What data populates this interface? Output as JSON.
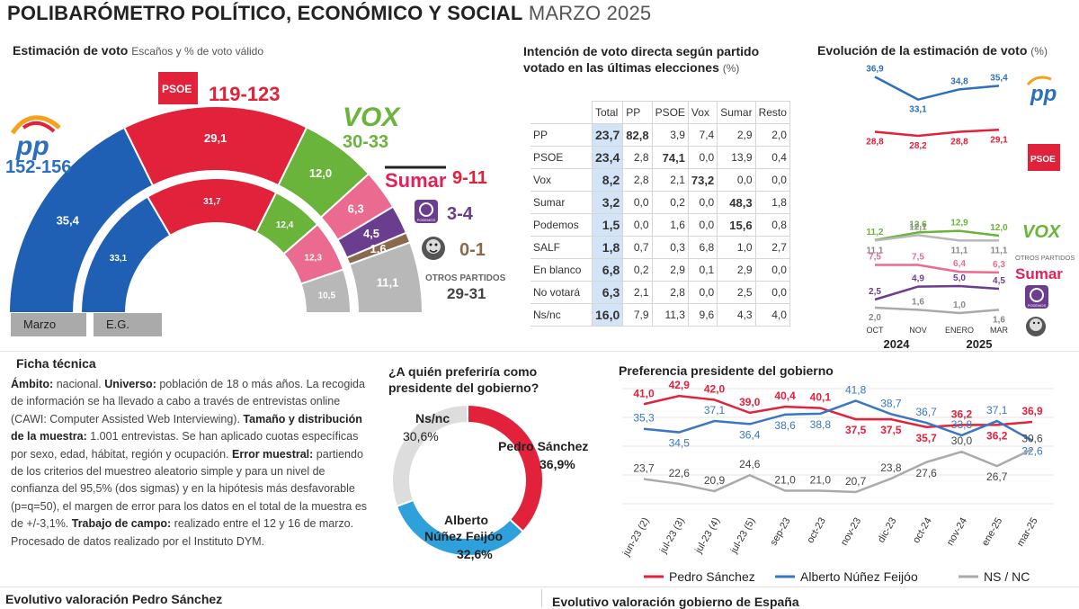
{
  "header": {
    "title_bold": "POLIBARÓMETRO POLÍTICO, ECONÓMICO Y SOCIAL",
    "title_light": "MARZO 2025"
  },
  "estimacion": {
    "title": "Estimación de voto",
    "subtitle": "Escaños y % de voto válido",
    "tabs": [
      "Marzo",
      "E.G."
    ],
    "parties": [
      {
        "name": "PP",
        "seats": "152-156"
      },
      {
        "name": "PSOE",
        "seats": "119-123"
      },
      {
        "name": "VOX",
        "seats": "30-33"
      },
      {
        "name": "Sumar",
        "seats": "9-11"
      },
      {
        "name": "Podemos",
        "seats": "3-4",
        "logo_text": "PODEMOS"
      },
      {
        "name": "SALF",
        "seats": "0-1"
      },
      {
        "name": "Otros partidos",
        "label": "OTROS PARTIDOS",
        "seats": "29-31"
      }
    ]
  },
  "intencion": {
    "title_line1": "Intención de voto directa según partido",
    "title_line2": "votado en las últimas elecciones",
    "unit": "(%)",
    "columns": [
      "Total",
      "PP",
      "PSOE",
      "Vox",
      "Sumar",
      "Resto"
    ],
    "rows": [
      {
        "label": "PP",
        "cells": [
          "23,7",
          "82,8",
          "3,9",
          "7,4",
          "2,9",
          "2,0"
        ]
      },
      {
        "label": "PSOE",
        "cells": [
          "23,4",
          "2,8",
          "74,1",
          "0,0",
          "13,9",
          "0,4"
        ]
      },
      {
        "label": "Vox",
        "cells": [
          "8,2",
          "2,8",
          "2,1",
          "73,2",
          "0,0",
          "0,0"
        ]
      },
      {
        "label": "Sumar",
        "cells": [
          "3,2",
          "0,0",
          "0,2",
          "0,0",
          "48,3",
          "1,8"
        ]
      },
      {
        "label": "Podemos",
        "cells": [
          "1,5",
          "0,0",
          "1,6",
          "0,0",
          "15,6",
          "0,8"
        ]
      },
      {
        "label": "SALF",
        "cells": [
          "1,8",
          "0,7",
          "0,3",
          "6,8",
          "1,0",
          "2,7"
        ]
      },
      {
        "label": "En blanco",
        "cells": [
          "6,8",
          "0,2",
          "2,9",
          "0,1",
          "2,9",
          "0,0"
        ]
      },
      {
        "label": "No votará",
        "cells": [
          "6,3",
          "2,1",
          "2,8",
          "0,0",
          "2,5",
          "0,0"
        ]
      },
      {
        "label": "Ns/nc",
        "cells": [
          "16,0",
          "7,9",
          "11,3",
          "9,6",
          "4,3",
          "4,0"
        ]
      }
    ]
  },
  "evolucion": {
    "title": "Evolución de la estimación de voto",
    "unit": "(%)",
    "otros_label": "OTROS PARTIDOS",
    "x_labels": [
      "OCT",
      "NOV",
      "ENERO",
      "MAR"
    ],
    "year_labels": [
      "2024",
      "2025"
    ]
  },
  "ficha": {
    "title": "Ficha técnica",
    "segments": [
      {
        "b": "Ámbito:",
        "t": " nacional. "
      },
      {
        "b": "Universo:",
        "t": " población de 18 o más años. La recogida de información se ha llevado a cabo a través de entrevistas online (CAWI: Computer Assisted Web Interviewing). "
      },
      {
        "b": "Tamaño y distribución de la muestra:",
        "t": " 1.001 entrevistas. Se han aplicado cuotas específicas por sexo, edad, hábitat, región y ocupación. "
      },
      {
        "b": "Error muestral:",
        "t": " partiendo de los criterios del muestreo aleatorio simple y para un nivel de confianza del 95,5% (dos sigmas) y en la hipótesis más desfavorable (p=q=50), el margen de error para los datos en el total de la muestra es de +/-3,1%. "
      },
      {
        "b": "Trabajo de campo:",
        "t": " realizado entre el 12 y 16 de marzo. Procesado de datos realizado por el Instituto DYM."
      }
    ]
  },
  "preferiria": {
    "title_line1": "¿A quién preferiría como",
    "title_line2": "presidente del gobierno?"
  },
  "preferencia": {
    "title": "Preferencia presidente del gobierno",
    "legend": [
      "Pedro Sánchez",
      "Alberto Núñez Feijóo",
      "NS / NC"
    ]
  },
  "bottom": {
    "left": "Evolutivo valoración Pedro Sánchez",
    "right": "Evolutivo valoración gobierno de España"
  },
  "chart_data": [
    {
      "type": "pie",
      "subtype": "semicircle-donut",
      "title": "Estimación de voto — Marzo (% voto válido)",
      "categories": [
        "PP",
        "PSOE",
        "VOX",
        "Sumar",
        "Podemos",
        "SALF",
        "Otros"
      ],
      "values": [
        35.4,
        29.1,
        12.0,
        6.3,
        4.5,
        1.6,
        11.1
      ],
      "labels": [
        "35,4",
        "29,1",
        "12,0",
        "6,3",
        "4,5",
        "1,6",
        "11,1"
      ],
      "colors": [
        "#1f5fb4",
        "#e2213a",
        "#6ab43c",
        "#ea6b8f",
        "#6a3d8f",
        "#8a6a4f",
        "#b8b8b8"
      ]
    },
    {
      "type": "pie",
      "subtype": "semicircle-donut",
      "title": "Estimación de voto — E.G. (% voto válido)",
      "categories": [
        "PP",
        "PSOE",
        "VOX",
        "Sumar",
        "Otros"
      ],
      "values": [
        33.1,
        31.7,
        12.4,
        12.3,
        10.5
      ],
      "labels": [
        "33,1",
        "31,7",
        "12,4",
        "12,3",
        "10,5"
      ],
      "colors": [
        "#1f5fb4",
        "#e2213a",
        "#6ab43c",
        "#ea6b8f",
        "#b8b8b8"
      ]
    },
    {
      "type": "line",
      "title": "Evolución de la estimación de voto (%)",
      "x": [
        "OCT 2024",
        "NOV 2024",
        "ENERO 2025",
        "MAR 2025"
      ],
      "series": [
        {
          "name": "PP",
          "values": [
            36.9,
            33.1,
            34.8,
            35.4
          ],
          "labels": [
            "36,9",
            "33,1",
            "34,8",
            "35,4"
          ],
          "color": "#2c6fbe"
        },
        {
          "name": "PSOE",
          "values": [
            28.8,
            28.2,
            28.8,
            29.1
          ],
          "labels": [
            "28,8",
            "28,2",
            "28,8",
            "29,1"
          ],
          "color": "#e2213a"
        },
        {
          "name": "VOX",
          "values": [
            11.2,
            12.6,
            12.9,
            12.0
          ],
          "labels": [
            "11,2",
            "12,6",
            "12,9",
            "12,0"
          ],
          "color": "#6ab43c"
        },
        {
          "name": "Otros partidos",
          "values": [
            11.1,
            12.1,
            11.1,
            11.1
          ],
          "labels": [
            "11,1",
            "12,1",
            "11,1",
            "11,1"
          ],
          "color": "#b8b8b8"
        },
        {
          "name": "Sumar",
          "values": [
            7.5,
            7.5,
            6.4,
            6.3
          ],
          "labels": [
            "7,5",
            "7,5",
            "6,4",
            "6,3"
          ],
          "color": "#ea6b8f"
        },
        {
          "name": "Podemos",
          "values": [
            2.5,
            4.9,
            5.0,
            4.5
          ],
          "labels": [
            "2,5",
            "4,9",
            "5,0",
            "4,5"
          ],
          "color": "#6a3d8f"
        },
        {
          "name": "SALF",
          "values": [
            2.0,
            1.6,
            1.0,
            1.6
          ],
          "labels": [
            "2,0",
            "1,6",
            "1,0",
            "1,6"
          ],
          "color": "#aaaaaa"
        }
      ]
    },
    {
      "type": "pie",
      "subtype": "donut",
      "title": "¿A quién preferiría como presidente del gobierno?",
      "categories": [
        "Pedro Sánchez",
        "Alberto Núñez Feijóo",
        "Ns/nc"
      ],
      "values": [
        36.9,
        32.6,
        30.6
      ],
      "labels": [
        "36,9%",
        "32,6%",
        "30,6%"
      ],
      "colors": [
        "#e2213a",
        "#2ea0dc",
        "#dddddd"
      ]
    },
    {
      "type": "line",
      "title": "Preferencia presidente del gobierno",
      "categories": [
        "jun-23 (2)",
        "jul-23 (3)",
        "jul-23 (4)",
        "jul-23 (5)",
        "sep-23",
        "oct-23",
        "nov-23",
        "dic-23",
        "oct-24",
        "nov-24",
        "ene-25",
        "mar-25"
      ],
      "series": [
        {
          "name": "Pedro Sánchez",
          "values": [
            41.0,
            42.9,
            42.0,
            39.0,
            40.4,
            40.1,
            37.5,
            37.5,
            35.7,
            36.2,
            36.2,
            36.9
          ],
          "labels": [
            "41,0",
            "42,9",
            "42,0",
            "39,0",
            "40,4",
            "40,1",
            "37,5",
            "37,5",
            "35,7",
            "36,2",
            "36,2",
            "36,9"
          ],
          "color": "#e2213a"
        },
        {
          "name": "Alberto Núñez Feijóo",
          "values": [
            35.3,
            34.5,
            37.1,
            36.4,
            38.6,
            38.8,
            41.8,
            38.7,
            36.7,
            33.8,
            37.1,
            32.6
          ],
          "labels": [
            "35,3",
            "34,5",
            "37,1",
            "36,4",
            "38,6",
            "38,8",
            "41,8",
            "38,7",
            "36,7",
            "33,8",
            "37,1",
            "32,6"
          ],
          "color": "#3a76c4"
        },
        {
          "name": "NS / NC",
          "values": [
            23.7,
            22.6,
            20.9,
            24.6,
            21.0,
            21.0,
            20.7,
            23.8,
            27.6,
            30.0,
            26.7,
            30.6
          ],
          "labels": [
            "23,7",
            "22,6",
            "20,9",
            "24,6",
            "21,0",
            "21,0",
            "20,7",
            "23,8",
            "27,6",
            "30,0",
            "26,7",
            "30,6"
          ],
          "color": "#aaaaaa"
        }
      ]
    }
  ]
}
